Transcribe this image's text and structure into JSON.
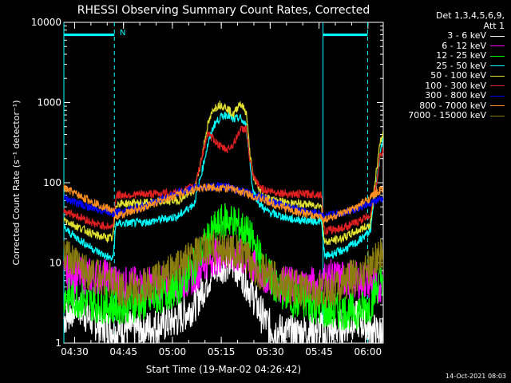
{
  "chart_data": {
    "type": "line",
    "title": "RHESSI Observing Summary Count Rates, Corrected",
    "xlabel": "Start Time (19-Mar-02 04:26:42)",
    "ylabel": "Corrected Count Rate (s⁻¹ detector⁻¹)",
    "yscale": "log",
    "ylim": [
      1,
      10000
    ],
    "xlim_minutes": [
      0,
      98
    ],
    "x_ticks": [
      "04:30",
      "04:45",
      "05:00",
      "05:15",
      "05:30",
      "05:45",
      "06:00"
    ],
    "x_tick_minutes": [
      3.3,
      18.3,
      33.3,
      48.3,
      63.3,
      78.3,
      93.3
    ],
    "y_ticks": [
      1,
      10,
      100,
      1000,
      10000
    ],
    "y_tick_labels": [
      "1",
      "10",
      "100",
      "1000",
      "10000"
    ],
    "night_marker_label": "N",
    "legend_placement": "top-right",
    "legend_header": [
      "Det 1,3,4,5,6,9,",
      "Att 1"
    ],
    "series": [
      {
        "name": "3 - 6 keV",
        "color": "#ffffff",
        "x": [
          0,
          2,
          4,
          8,
          12,
          15,
          16,
          18,
          20,
          25,
          30,
          35,
          40,
          43,
          45,
          47,
          50,
          53,
          55,
          58,
          60,
          63,
          66,
          70,
          75,
          79,
          80,
          84,
          90,
          94,
          96,
          98
        ],
        "y": [
          2,
          2.5,
          3,
          2,
          1.6,
          1.5,
          1.4,
          1.6,
          1.5,
          1.5,
          1.7,
          2,
          3,
          5,
          7,
          9,
          10,
          9,
          7,
          4,
          2.5,
          1.6,
          1.4,
          1.3,
          1.4,
          1.5,
          1.2,
          1.5,
          2,
          1.5,
          1.3,
          1.4
        ]
      },
      {
        "name": "6 - 12 keV",
        "color": "#ff00ff",
        "x": [
          0,
          4,
          8,
          12,
          15,
          16,
          18,
          25,
          35,
          40,
          43,
          46,
          50,
          54,
          58,
          62,
          66,
          70,
          75,
          79,
          80,
          85,
          90,
          94,
          96,
          98
        ],
        "y": [
          7.5,
          7,
          6.8,
          6.6,
          6.5,
          5.5,
          5.3,
          5.3,
          5.4,
          7,
          10,
          12,
          13,
          12,
          9,
          7,
          5.5,
          5.3,
          5.3,
          5.2,
          6.5,
          6.3,
          6,
          6,
          5,
          6
        ]
      },
      {
        "name": "12 - 25 keV",
        "color": "#00ff00",
        "x": [
          0,
          4,
          8,
          12,
          15,
          16,
          18,
          25,
          35,
          40,
          43,
          46,
          48,
          50,
          52,
          54,
          56,
          58,
          60,
          62,
          65,
          70,
          79,
          80,
          85,
          90,
          94,
          96,
          98
        ],
        "y": [
          4,
          3.5,
          3.2,
          3,
          3,
          2.8,
          3,
          3.2,
          5,
          9,
          16,
          25,
          30,
          35,
          32,
          28,
          24,
          18,
          12,
          8,
          5,
          3.5,
          2.8,
          2.5,
          2.5,
          2.5,
          3,
          5,
          7
        ]
      },
      {
        "name": "25 - 50 keV",
        "color": "#00ffff",
        "x": [
          0,
          3,
          6,
          10,
          15,
          16,
          18,
          25,
          35,
          40,
          42,
          44,
          46,
          48,
          50,
          52,
          54,
          56,
          57,
          58,
          60,
          62,
          65,
          70,
          79,
          80,
          85,
          90,
          94,
          96,
          97,
          98
        ],
        "y": [
          27,
          22,
          18,
          14,
          11,
          31,
          31,
          32,
          38,
          55,
          120,
          280,
          520,
          650,
          720,
          600,
          650,
          500,
          200,
          80,
          55,
          45,
          40,
          35,
          33,
          12,
          14,
          18,
          25,
          100,
          220,
          380
        ]
      },
      {
        "name": "50 - 100 keV",
        "color": "#e0e030",
        "x": [
          0,
          3,
          6,
          10,
          15,
          16,
          18,
          25,
          35,
          40,
          42,
          44,
          46,
          48,
          50,
          52,
          54,
          56,
          57,
          58,
          60,
          62,
          65,
          70,
          79,
          80,
          85,
          90,
          94,
          96,
          97,
          98
        ],
        "y": [
          35,
          30,
          26,
          22,
          20,
          55,
          55,
          56,
          60,
          80,
          180,
          500,
          850,
          950,
          860,
          700,
          1000,
          750,
          250,
          120,
          80,
          65,
          60,
          55,
          52,
          18,
          20,
          25,
          30,
          150,
          300,
          420
        ]
      },
      {
        "name": "100 - 300 keV",
        "color": "#e02020",
        "x": [
          0,
          3,
          6,
          10,
          15,
          16,
          18,
          25,
          35,
          40,
          42,
          44,
          46,
          48,
          50,
          52,
          54,
          56,
          57,
          58,
          60,
          62,
          65,
          70,
          79,
          80,
          85,
          90,
          94,
          96,
          97,
          98
        ],
        "y": [
          45,
          40,
          36,
          30,
          28,
          70,
          70,
          72,
          75,
          90,
          180,
          400,
          350,
          280,
          260,
          300,
          450,
          480,
          200,
          120,
          90,
          80,
          76,
          72,
          72,
          25,
          27,
          32,
          40,
          100,
          220,
          250
        ]
      },
      {
        "name": "300 - 800 keV",
        "color": "#0000ff",
        "x": [
          0,
          3,
          6,
          10,
          15,
          16,
          20,
          25,
          30,
          35,
          40,
          45,
          50,
          55,
          60,
          65,
          70,
          75,
          79,
          80,
          85,
          90,
          94,
          96,
          98
        ],
        "y": [
          65,
          58,
          52,
          47,
          42,
          42,
          46,
          52,
          62,
          75,
          86,
          90,
          88,
          78,
          66,
          56,
          48,
          43,
          41,
          38,
          42,
          48,
          55,
          60,
          62
        ]
      },
      {
        "name": "800 - 7000 keV",
        "color": "#ff9020",
        "x": [
          0,
          3,
          6,
          10,
          15,
          16,
          20,
          25,
          30,
          35,
          40,
          45,
          50,
          55,
          60,
          65,
          70,
          75,
          79,
          80,
          85,
          90,
          94,
          96,
          98
        ],
        "y": [
          85,
          75,
          65,
          55,
          45,
          38,
          43,
          50,
          60,
          72,
          84,
          88,
          86,
          76,
          64,
          53,
          45,
          40,
          37,
          35,
          40,
          50,
          65,
          75,
          85
        ]
      },
      {
        "name": "7000 - 15000 keV",
        "color": "#8b7d10",
        "x": [
          0,
          3,
          6,
          10,
          15,
          16,
          20,
          25,
          30,
          35,
          40,
          45,
          50,
          55,
          60,
          65,
          70,
          75,
          79,
          80,
          85,
          90,
          94,
          96,
          98
        ],
        "y": [
          12,
          10,
          8.5,
          7,
          6,
          5,
          4.5,
          5,
          6.5,
          9,
          12,
          15,
          15,
          12,
          8,
          6,
          5,
          4.5,
          4.2,
          4.5,
          5.5,
          7,
          9,
          12,
          14
        ]
      }
    ]
  },
  "footer_date": "14-Oct-2021 08:03"
}
